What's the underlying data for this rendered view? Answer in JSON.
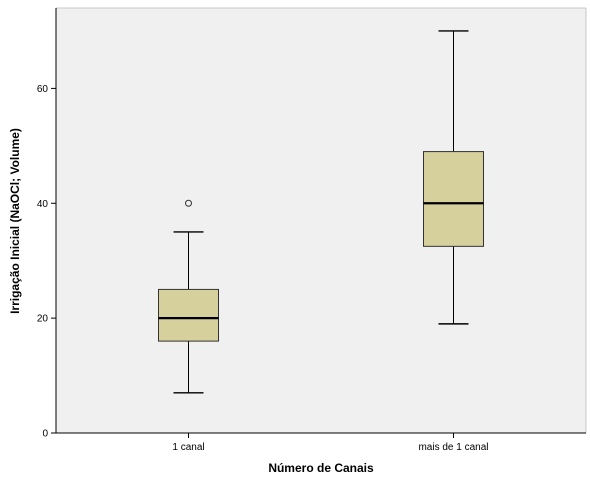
{
  "chart_data": {
    "type": "boxplot",
    "xlabel": "Número de Canais",
    "ylabel": "Irrigação Inicial (NaOCl; Volume)",
    "ylim": [
      0,
      74
    ],
    "yticks": [
      0,
      20,
      40,
      60
    ],
    "grid": false,
    "colors": {
      "plot_bg": "#f0f0f0",
      "box_fill": "#d6d09c",
      "stroke": "#000000",
      "frame": "#c8c8c8"
    },
    "categories": [
      "1 canal",
      "mais de 1 canal"
    ],
    "boxes": [
      {
        "category": "1 canal",
        "whisker_low": 7,
        "q1": 16,
        "median": 20,
        "q3": 25,
        "whisker_high": 35,
        "outliers": [
          40
        ]
      },
      {
        "category": "mais de 1 canal",
        "whisker_low": 19,
        "q1": 32.5,
        "median": 40,
        "q3": 49,
        "whisker_high": 70,
        "outliers": []
      }
    ]
  }
}
